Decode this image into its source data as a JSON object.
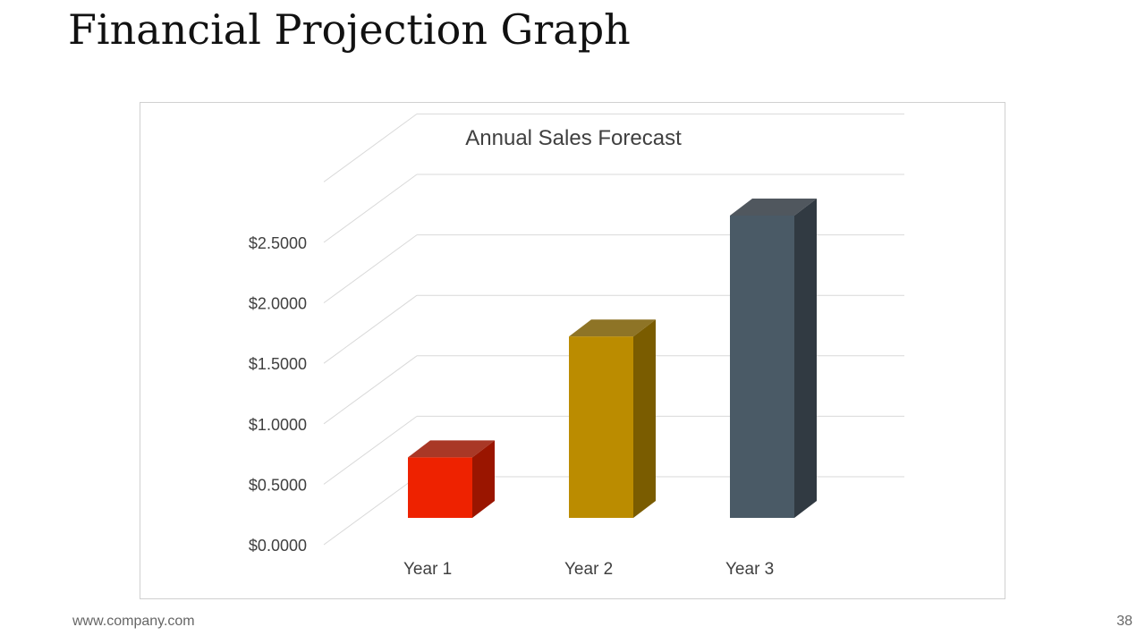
{
  "slide": {
    "title": "Financial Projection Graph",
    "footer_url": "www.company.com",
    "page_number": "38"
  },
  "chart_data": {
    "type": "bar",
    "title": "Annual Sales Forecast",
    "categories": [
      "Year 1",
      "Year 2",
      "Year 3"
    ],
    "values": [
      0.5,
      1.5,
      2.5
    ],
    "yticks": [
      "$0.0000",
      "$0.5000",
      "$1.0000",
      "$1.5000",
      "$2.0000",
      "$2.5000"
    ],
    "ylim": [
      0,
      3.0
    ],
    "grid": true,
    "legend": "none",
    "bar_colors": [
      "#ee2200",
      "#bb8c00",
      "#4a5a66"
    ],
    "bar_side_colors": [
      "#9a1500",
      "#7a5c00",
      "#313a42"
    ]
  }
}
